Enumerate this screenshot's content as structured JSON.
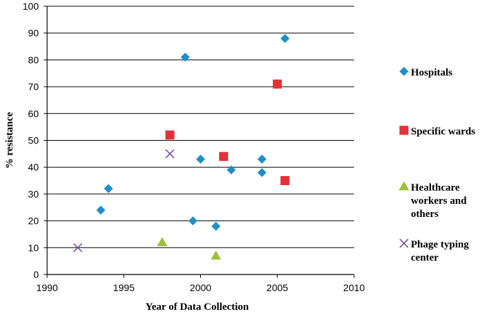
{
  "chart_data": {
    "type": "scatter",
    "title": "",
    "xlabel": "Year of Data Collection",
    "ylabel": "% resistance",
    "xlim": [
      1990,
      2010
    ],
    "ylim": [
      0,
      100
    ],
    "xticks": [
      1990,
      1995,
      2000,
      2005,
      2010
    ],
    "yticks": [
      0,
      10,
      20,
      30,
      40,
      50,
      60,
      70,
      80,
      90,
      100
    ],
    "grid": "horizontal",
    "legend_position": "right",
    "series": [
      {
        "name": "Hospitals",
        "marker": "diamond",
        "color": "#1f8fc7",
        "points": [
          {
            "x": 1993.5,
            "y": 24
          },
          {
            "x": 1994,
            "y": 32
          },
          {
            "x": 1999,
            "y": 81
          },
          {
            "x": 1999.5,
            "y": 20
          },
          {
            "x": 2000,
            "y": 43
          },
          {
            "x": 2001,
            "y": 18
          },
          {
            "x": 2002,
            "y": 39
          },
          {
            "x": 2004,
            "y": 43
          },
          {
            "x": 2004,
            "y": 38
          },
          {
            "x": 2005.5,
            "y": 88
          }
        ]
      },
      {
        "name": "Specific wards",
        "marker": "square",
        "color": "#e0323a",
        "points": [
          {
            "x": 1998,
            "y": 52
          },
          {
            "x": 2001.5,
            "y": 44
          },
          {
            "x": 2005,
            "y": 71
          },
          {
            "x": 2005.5,
            "y": 35
          }
        ]
      },
      {
        "name": "Healthcare workers and others",
        "label_lines": [
          "Healthcare",
          "workers and",
          "others"
        ],
        "marker": "triangle",
        "color": "#9dc13b",
        "points": [
          {
            "x": 1997.5,
            "y": 12
          },
          {
            "x": 2001,
            "y": 7
          }
        ]
      },
      {
        "name": "Phage typing center",
        "label_lines": [
          "Phage typing",
          "center"
        ],
        "marker": "x",
        "color": "#7a4fa3",
        "points": [
          {
            "x": 1992,
            "y": 10
          },
          {
            "x": 1998,
            "y": 45
          }
        ]
      }
    ]
  }
}
